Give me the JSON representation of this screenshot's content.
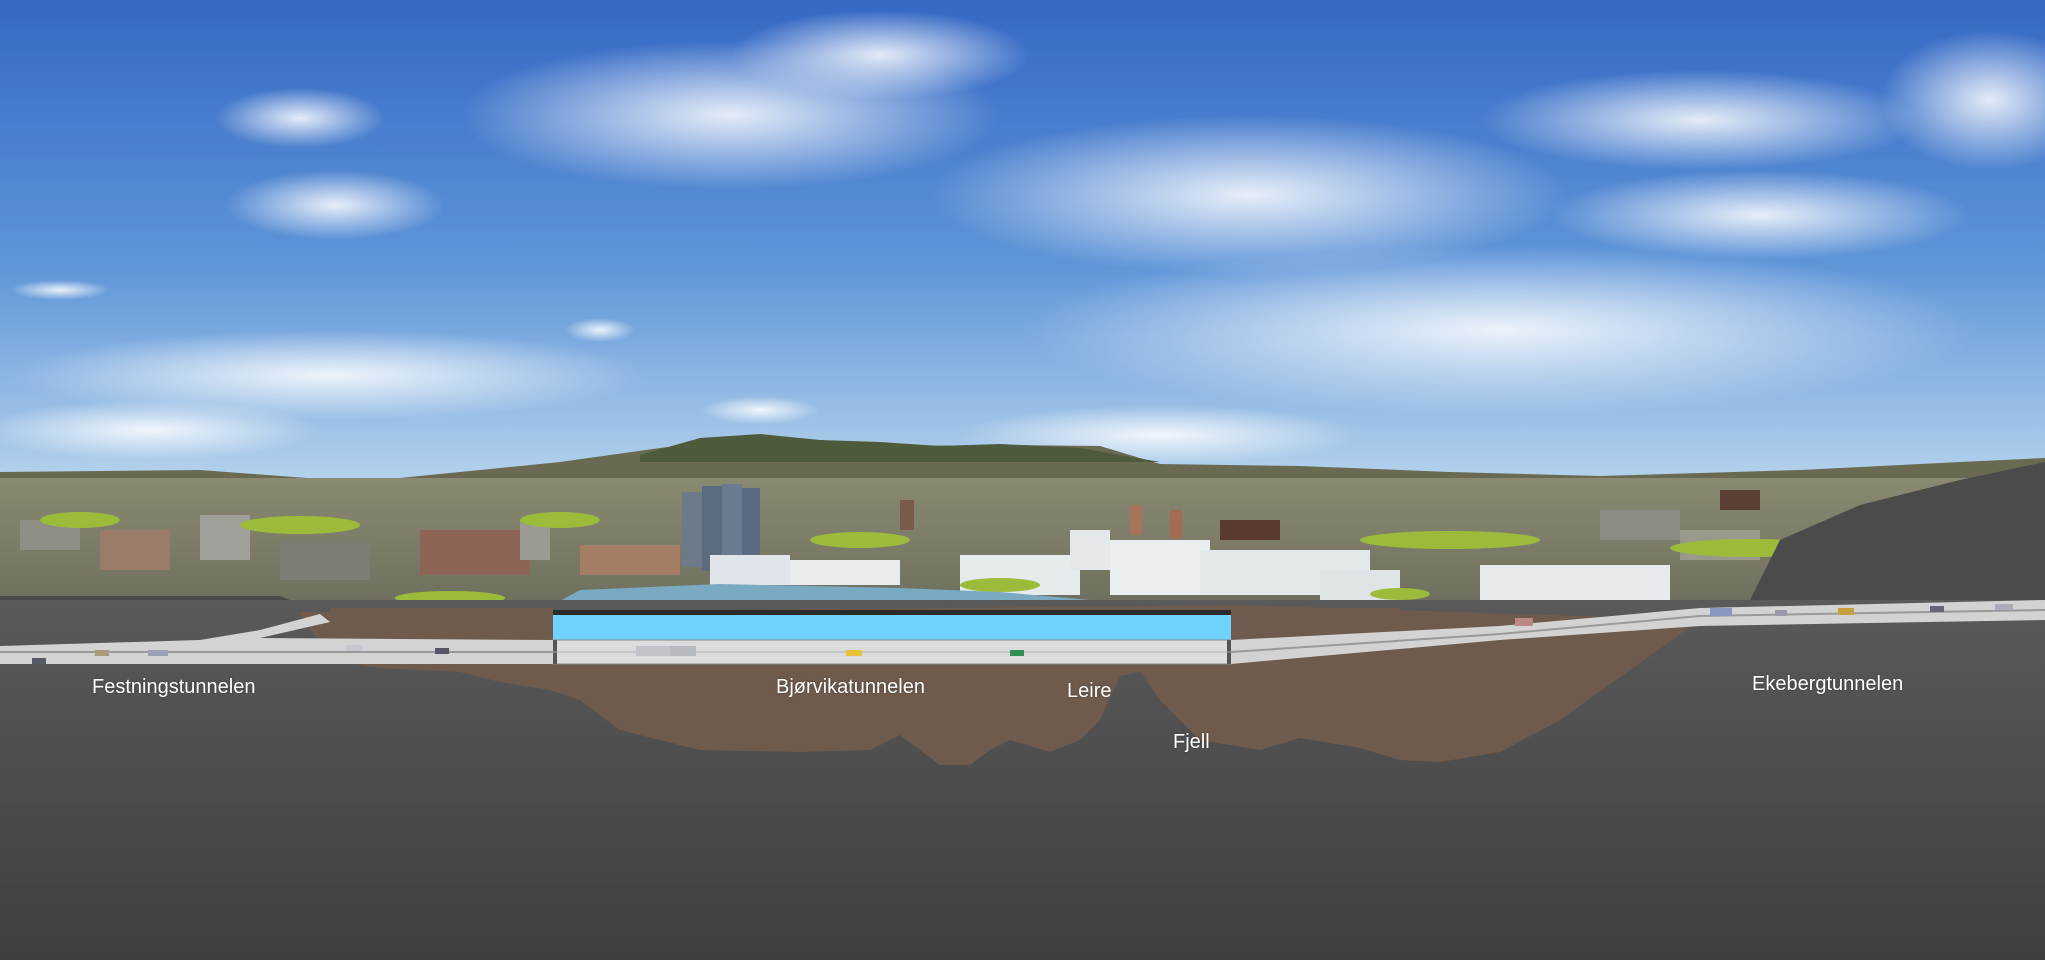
{
  "labels": {
    "festningstunnelen": "Festningstunnelen",
    "bjorvikatunnelen": "Bjørvikatunnelen",
    "leire": "Leire",
    "fjell": "Fjell",
    "ekebergtunnelen": "Ekebergtunnelen"
  },
  "colors": {
    "sky_top": "#3e72c9",
    "sky_horizon": "#a9cbe8",
    "rock": "#4d4d4d",
    "clay": "#6f5a4c",
    "tunnel_water": "#6fd0ff",
    "road": "#d4d4d4"
  }
}
